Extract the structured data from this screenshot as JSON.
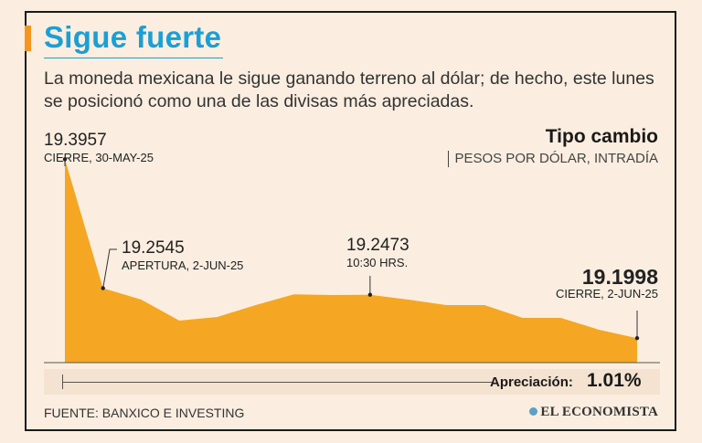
{
  "header": {
    "title": "Sigue fuerte",
    "subtitle": "La moneda mexicana le sigue ganando terreno al dólar; de hecho, este lunes se posicionó como una de las divisas más apreciadas."
  },
  "legend": {
    "title": "Tipo cambio",
    "subtitle": "PESOS POR DÓLAR, INTRADÍA"
  },
  "annotations": [
    {
      "value": "19.3957",
      "desc": "CIERRE, 30-MAY-25"
    },
    {
      "value": "19.2545",
      "desc": "APERTURA, 2-JUN-25"
    },
    {
      "value": "19.2473",
      "desc": "10:30 HRS."
    },
    {
      "value": "19.1998",
      "desc": "CIERRE, 2-JUN-25"
    }
  ],
  "appreciation": {
    "label": "Apreciación:",
    "value": "1.01%"
  },
  "footer": {
    "source": "FUENTE: BANXICO E INVESTING",
    "logo": "EL ECONOMISTA"
  },
  "colors": {
    "accent": "#f7941d",
    "title": "#1a9fd6",
    "area": "#f5a623"
  },
  "chart_data": {
    "type": "area",
    "title": "Tipo cambio",
    "subtitle": "PESOS POR DÓLAR, INTRADÍA",
    "xlabel": "",
    "ylabel": "",
    "values": [
      19.3957,
      19.2545,
      19.242,
      19.219,
      19.223,
      19.236,
      19.2478,
      19.247,
      19.2473,
      19.242,
      19.236,
      19.236,
      19.222,
      19.222,
      19.209,
      19.1998
    ],
    "ylim": [
      19.173,
      19.42
    ],
    "labeled_points": [
      {
        "index": 0,
        "value": 19.3957,
        "label": "CIERRE, 30-MAY-25"
      },
      {
        "index": 1,
        "value": 19.2545,
        "label": "APERTURA, 2-JUN-25"
      },
      {
        "index": 8,
        "value": 19.2473,
        "label": "10:30 HRS."
      },
      {
        "index": 15,
        "value": 19.1998,
        "label": "CIERRE, 2-JUN-25"
      }
    ],
    "grid": false,
    "legend": "top-right"
  }
}
